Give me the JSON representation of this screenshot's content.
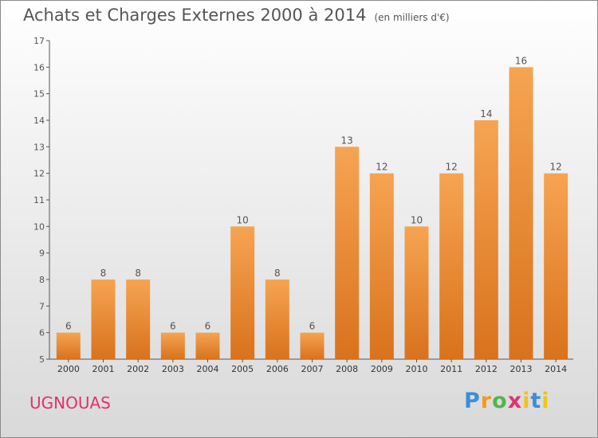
{
  "header": {
    "title": "Achats et Charges Externes 2000 à 2014",
    "subtitle": "(en milliers d'€)"
  },
  "footer": {
    "place": "UGNOUAS",
    "logo": "Proxiti"
  },
  "colors": {
    "bar_top": "#f6a452",
    "bar_bottom": "#d9721c",
    "axis": "#555555",
    "place": "#e0326e"
  },
  "chart_data": {
    "type": "bar",
    "title": "Achats et Charges Externes 2000 à 2014",
    "subtitle": "(en milliers d'€)",
    "xlabel": "",
    "ylabel": "",
    "categories": [
      "2000",
      "2001",
      "2002",
      "2003",
      "2004",
      "2005",
      "2006",
      "2007",
      "2008",
      "2009",
      "2010",
      "2011",
      "2012",
      "2013",
      "2014"
    ],
    "values": [
      6,
      8,
      8,
      6,
      6,
      10,
      8,
      6,
      13,
      12,
      10,
      12,
      14,
      16,
      12
    ],
    "ylim": [
      5,
      17
    ],
    "yticks": [
      5,
      6,
      7,
      8,
      9,
      10,
      11,
      12,
      13,
      14,
      15,
      16,
      17
    ],
    "grid": false,
    "data_labels": true
  }
}
